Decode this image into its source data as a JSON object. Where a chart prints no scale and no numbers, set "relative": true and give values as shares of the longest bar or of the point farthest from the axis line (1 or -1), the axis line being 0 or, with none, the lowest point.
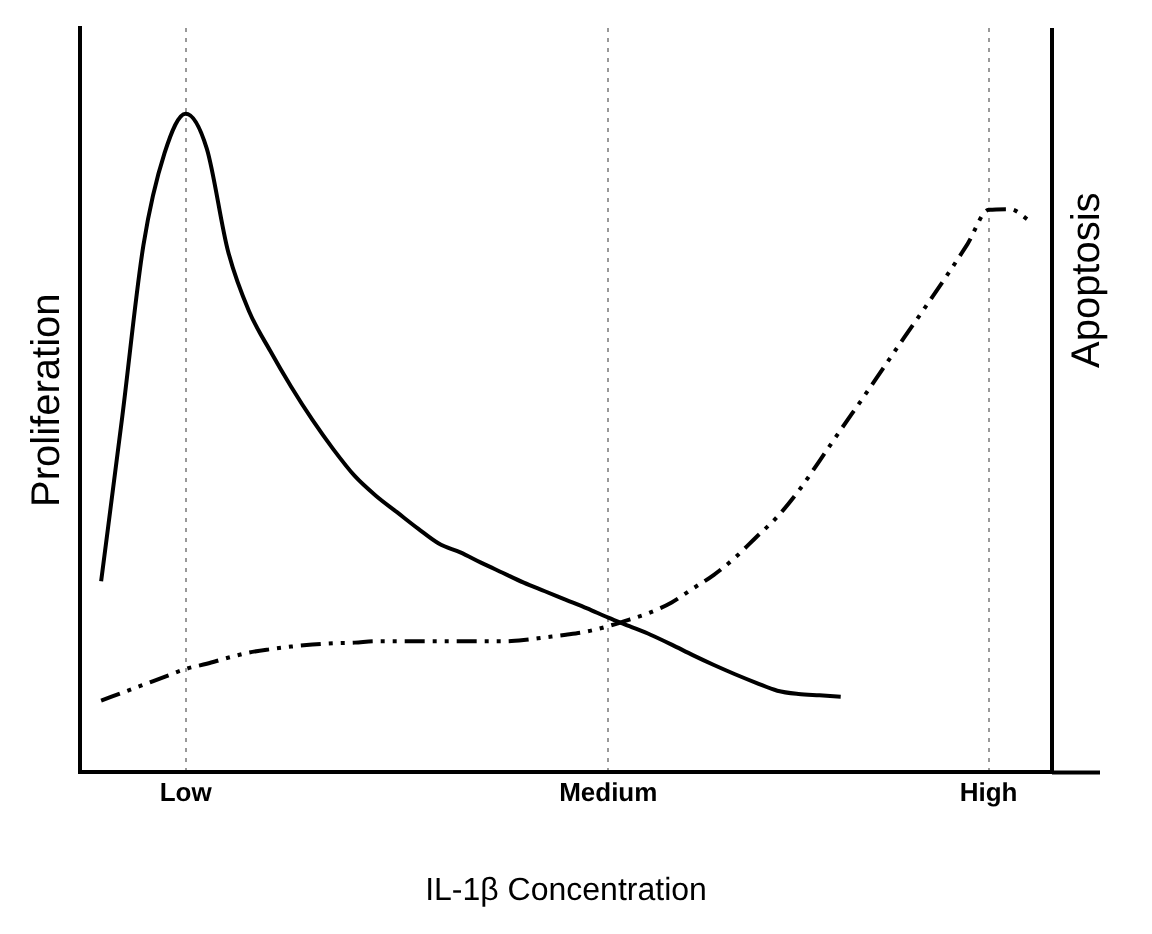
{
  "chart_data": {
    "type": "line",
    "relative": true,
    "xlabel": "IL-1β Concentration",
    "ylabel": "Proliferation",
    "categories": [
      null,
      null,
      null,
      null,
      null,
      "Low",
      null,
      null,
      null,
      null,
      null,
      null,
      null,
      null,
      null,
      null,
      null,
      null,
      null,
      null,
      null,
      null,
      null,
      null,
      null,
      "Medium",
      null,
      null,
      null,
      null,
      null,
      null,
      null,
      null,
      null,
      null,
      null,
      null,
      null,
      null,
      null,
      null,
      null,
      "High",
      null,
      null,
      null
    ],
    "grid": "x",
    "marker": "none",
    "legend": false,
    "ref_lines": [
      {
        "axis": "x",
        "label": "Apoptosis",
        "color": "#000000",
        "line_style": "solid"
      }
    ],
    "series": [
      {
        "color": "#000000",
        "line_style": "solid",
        "values": [
          null,
          0.29,
          0.54,
          0.8,
          0.94,
          1,
          0.947,
          0.792,
          0.7,
          0.64,
          0.585,
          0.535,
          0.49,
          0.45,
          0.42,
          0.395,
          0.37,
          0.347,
          0.334,
          0.318,
          0.303,
          0.288,
          0.275,
          0.262,
          0.249,
          0.235,
          0.222,
          0.209,
          0.194,
          0.178,
          0.163,
          0.149,
          0.136,
          0.124,
          0.119,
          0.117,
          0.115,
          null,
          null,
          null,
          null,
          null,
          null,
          null,
          null,
          null,
          null
        ]
      },
      {
        "color": "#000000",
        "line_style": "dashed",
        "values": [
          null,
          0.109,
          0.121,
          0.133,
          0.145,
          0.157,
          0.165,
          0.174,
          0.182,
          0.187,
          0.191,
          0.194,
          0.196,
          0.197,
          0.199,
          0.199,
          0.199,
          0.199,
          0.199,
          0.199,
          0.199,
          0.201,
          0.205,
          0.209,
          0.214,
          0.222,
          0.232,
          0.243,
          0.258,
          0.279,
          0.3,
          0.326,
          0.357,
          0.388,
          0.427,
          0.473,
          0.52,
          0.566,
          0.613,
          0.66,
          0.706,
          0.753,
          0.802,
          0.854,
          0.855,
          0.836,
          null
        ]
      }
    ]
  }
}
